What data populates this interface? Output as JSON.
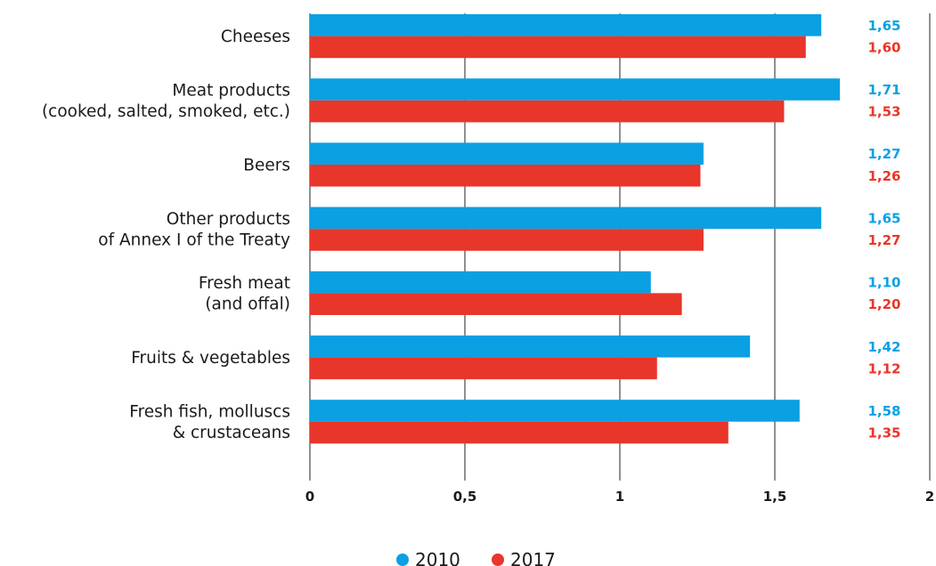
{
  "chart_data": {
    "type": "bar",
    "orientation": "horizontal",
    "categories": [
      [
        "Cheeses"
      ],
      [
        "Meat products",
        "(cooked, salted, smoked, etc.)"
      ],
      [
        "Beers"
      ],
      [
        "Other products",
        "of Annex I of the Treaty"
      ],
      [
        "Fresh meat",
        "(and offal)"
      ],
      [
        "Fruits & vegetables"
      ],
      [
        "Fresh fish, molluscs",
        "& crustaceans"
      ]
    ],
    "series": [
      {
        "name": "2010",
        "color": "#0aa0e2",
        "values": [
          1.65,
          1.71,
          1.27,
          1.65,
          1.1,
          1.42,
          1.58
        ],
        "labels": [
          "1,65",
          "1,71",
          "1,27",
          "1,65",
          "1,10",
          "1,42",
          "1,58"
        ]
      },
      {
        "name": "2017",
        "color": "#e8362a",
        "values": [
          1.6,
          1.53,
          1.26,
          1.27,
          1.2,
          1.12,
          1.35
        ],
        "labels": [
          "1,60",
          "1,53",
          "1,26",
          "1,27",
          "1,20",
          "1,12",
          "1,35"
        ]
      }
    ],
    "xlim": [
      0,
      2
    ],
    "xticks": [
      0,
      0.5,
      1,
      1.5,
      2
    ],
    "xtick_labels": [
      "0",
      "0,5",
      "1",
      "1,5",
      "2"
    ],
    "grid": true,
    "legend_position": "bottom-center"
  }
}
